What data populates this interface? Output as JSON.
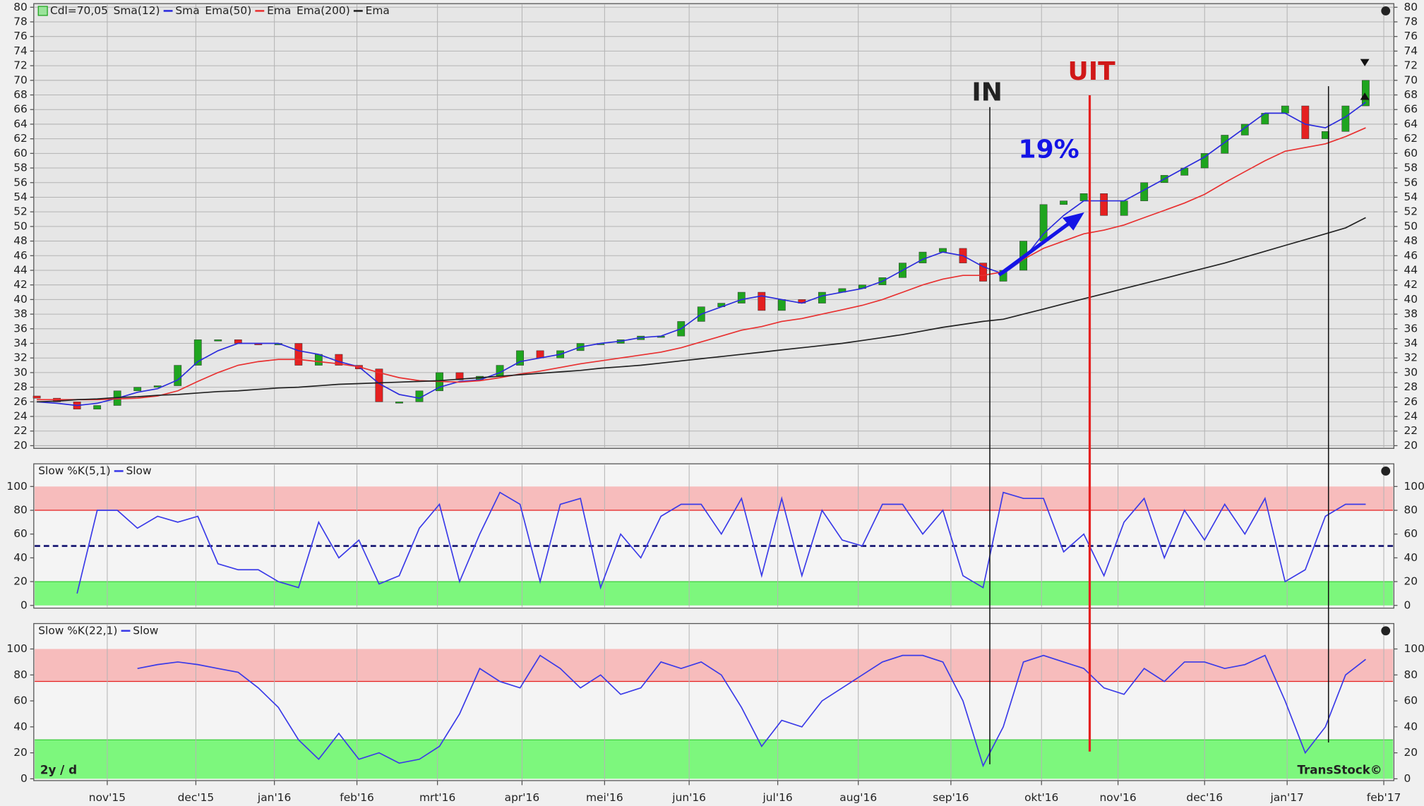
{
  "chart_data": [
    {
      "type": "candlestick",
      "x": [
        0,
        1,
        2,
        3,
        4,
        5,
        6,
        7,
        8,
        9,
        10,
        11,
        12,
        13,
        14,
        15,
        16,
        17,
        18,
        19,
        20,
        21,
        22,
        23,
        24,
        25,
        26,
        27,
        28,
        29,
        30,
        31,
        32,
        33,
        34,
        35,
        36,
        37,
        38,
        39,
        40,
        41,
        42,
        43,
        44,
        45,
        46,
        47,
        48,
        49,
        50,
        51,
        52,
        53,
        54,
        55,
        56,
        57,
        58,
        59,
        60,
        61,
        62,
        63,
        64,
        65,
        66
      ],
      "xlim": [
        -0.15,
        67.4
      ],
      "ylim": [
        20,
        80
      ],
      "yticks": [
        20,
        22,
        24,
        26,
        28,
        30,
        32,
        34,
        36,
        38,
        40,
        42,
        44,
        46,
        48,
        50,
        52,
        54,
        56,
        58,
        60,
        62,
        64,
        66,
        68,
        70,
        72,
        74,
        76,
        78,
        80
      ],
      "grid": true,
      "annotations": [
        "IN",
        "UIT",
        "19%"
      ],
      "series": [
        {
          "name": "Cdl=70,05",
          "type": "candlestick",
          "color": "#9be39b",
          "colors": {
            "up": "#1fa51f",
            "down": "#e52020"
          },
          "open": [
            26.8,
            26.5,
            26,
            25,
            25.5,
            27.5,
            28,
            28.2,
            31,
            34.5,
            34.5,
            34,
            33.8,
            34,
            31,
            32.5,
            31,
            30.5,
            26,
            26,
            27.5,
            30,
            29,
            29.5,
            31,
            33,
            32,
            33,
            34,
            34,
            34.5,
            35,
            35,
            37,
            39,
            39.5,
            41,
            38.5,
            40,
            39.5,
            41,
            41.5,
            42,
            43,
            45,
            46.5,
            47,
            45,
            42.5,
            44,
            48,
            53,
            53.5,
            54.5,
            51.5,
            53.5,
            56,
            57,
            58,
            60,
            62.5,
            64,
            65.5,
            66.5,
            62,
            63,
            66.5
          ],
          "close": [
            26.5,
            26,
            25,
            25.5,
            27.5,
            28,
            28.2,
            31,
            34.5,
            34.5,
            34,
            33.8,
            34,
            31,
            32.5,
            31,
            30.5,
            26,
            26,
            27.5,
            30,
            29,
            29.5,
            31,
            33,
            32,
            33,
            34,
            34,
            34.5,
            35,
            35,
            37,
            39,
            39.5,
            41,
            38.5,
            40,
            39.5,
            41,
            41.5,
            42,
            43,
            45,
            46.5,
            47,
            45,
            42.5,
            44,
            48,
            53,
            53.5,
            54.5,
            51.5,
            53.5,
            56,
            57,
            58,
            60,
            62.5,
            64,
            65.5,
            66.5,
            62,
            63,
            66.5,
            70
          ]
        },
        {
          "name": "Sma",
          "label": "Sma(12)",
          "color": "#2b2bdc",
          "values": [
            26,
            25.8,
            25.5,
            25.8,
            26.5,
            27.3,
            27.8,
            29,
            31.5,
            33,
            34,
            34,
            34,
            33,
            32.5,
            31.5,
            30.8,
            28.5,
            27,
            26.5,
            28,
            28.8,
            29,
            30,
            31.5,
            32,
            32.5,
            33.5,
            34,
            34.3,
            34.8,
            35,
            36,
            38,
            39,
            40,
            40.5,
            40,
            39.5,
            40.5,
            41,
            41.5,
            42.5,
            44,
            45.5,
            46.5,
            46,
            44.5,
            43.5,
            45.5,
            49,
            51.5,
            53.5,
            53.5,
            53.5,
            55,
            56.5,
            58,
            59.5,
            61.5,
            63.5,
            65.5,
            65.5,
            64,
            63.5,
            65,
            67
          ]
        },
        {
          "name": "Ema",
          "label": "Ema(50)",
          "color": "#e83030",
          "values": [
            26.3,
            26.3,
            26.3,
            26.3,
            26.4,
            26.5,
            26.8,
            27.5,
            28.8,
            30,
            31,
            31.5,
            31.8,
            31.8,
            31.5,
            31.2,
            30.8,
            30,
            29.3,
            28.9,
            28.8,
            28.7,
            28.9,
            29.3,
            29.8,
            30.2,
            30.7,
            31.2,
            31.6,
            32,
            32.4,
            32.8,
            33.4,
            34.2,
            35,
            35.8,
            36.3,
            37,
            37.4,
            38,
            38.6,
            39.2,
            40,
            41,
            42,
            42.8,
            43.3,
            43.3,
            43.8,
            45.5,
            47,
            48,
            49,
            49.5,
            50.2,
            51.2,
            52.2,
            53.2,
            54.4,
            56,
            57.5,
            59,
            60.3,
            60.8,
            61.3,
            62.3,
            63.5
          ]
        },
        {
          "name": "Ema",
          "label": "Ema(200)",
          "color": "#222222",
          "values": [
            26,
            26.1,
            26.3,
            26.4,
            26.6,
            26.7,
            26.9,
            27,
            27.2,
            27.4,
            27.5,
            27.7,
            27.9,
            28,
            28.2,
            28.4,
            28.5,
            28.6,
            28.7,
            28.8,
            28.9,
            29.1,
            29.3,
            29.5,
            29.7,
            29.9,
            30.1,
            30.3,
            30.6,
            30.8,
            31,
            31.3,
            31.6,
            31.9,
            32.2,
            32.5,
            32.8,
            33.1,
            33.4,
            33.7,
            34,
            34.4,
            34.8,
            35.2,
            35.7,
            36.2,
            36.6,
            37,
            37.3,
            38,
            38.7,
            39.4,
            40.1,
            40.8,
            41.5,
            42.2,
            42.9,
            43.6,
            44.3,
            45,
            45.8,
            46.6,
            47.4,
            48.2,
            49,
            49.8,
            51.2
          ]
        }
      ]
    },
    {
      "type": "line",
      "x": [
        0,
        1,
        2,
        3,
        4,
        5,
        6,
        7,
        8,
        9,
        10,
        11,
        12,
        13,
        14,
        15,
        16,
        17,
        18,
        19,
        20,
        21,
        22,
        23,
        24,
        25,
        26,
        27,
        28,
        29,
        30,
        31,
        32,
        33,
        34,
        35,
        36,
        37,
        38,
        39,
        40,
        41,
        42,
        43,
        44,
        45,
        46,
        47,
        48,
        49,
        50,
        51,
        52,
        53,
        54,
        55,
        56,
        57,
        58,
        59,
        60,
        61,
        62,
        63,
        64,
        65,
        66
      ],
      "xlim": [
        -0.15,
        67.4
      ],
      "ylim": [
        0,
        100
      ],
      "yticks": [
        0,
        20,
        40,
        60,
        80,
        100
      ],
      "bands": [
        {
          "from": 80,
          "to": 100,
          "color": "#f7bcbc",
          "edge": "#e52020"
        },
        {
          "from": 0,
          "to": 20,
          "color": "#7df77d",
          "edge": "#3ccc3c"
        }
      ],
      "ref_line": 50,
      "series": [
        {
          "name": "Slow",
          "label": "Slow %K(5,1)",
          "color": "#3a3ae8",
          "values": [
            null,
            null,
            10,
            80,
            80,
            65,
            75,
            70,
            75,
            35,
            30,
            30,
            20,
            15,
            70,
            40,
            55,
            18,
            25,
            65,
            85,
            20,
            60,
            95,
            85,
            20,
            85,
            90,
            15,
            60,
            40,
            75,
            85,
            85,
            60,
            90,
            25,
            90,
            25,
            80,
            55,
            50,
            85,
            85,
            60,
            80,
            25,
            15,
            95,
            90,
            90,
            45,
            60,
            25,
            70,
            90,
            40,
            80,
            55,
            85,
            60,
            90,
            20,
            30,
            75,
            85,
            85
          ]
        }
      ]
    },
    {
      "type": "line",
      "x": [
        0,
        1,
        2,
        3,
        4,
        5,
        6,
        7,
        8,
        9,
        10,
        11,
        12,
        13,
        14,
        15,
        16,
        17,
        18,
        19,
        20,
        21,
        22,
        23,
        24,
        25,
        26,
        27,
        28,
        29,
        30,
        31,
        32,
        33,
        34,
        35,
        36,
        37,
        38,
        39,
        40,
        41,
        42,
        43,
        44,
        45,
        46,
        47,
        48,
        49,
        50,
        51,
        52,
        53,
        54,
        55,
        56,
        57,
        58,
        59,
        60,
        61,
        62,
        63,
        64,
        65,
        66
      ],
      "xlim": [
        -0.15,
        67.4
      ],
      "ylim": [
        0,
        100
      ],
      "yticks": [
        0,
        20,
        40,
        60,
        80,
        100
      ],
      "xticks": [
        {
          "value": 3.5,
          "label": "nov'15"
        },
        {
          "value": 7.9,
          "label": "dec'15"
        },
        {
          "value": 11.8,
          "label": "jan'16"
        },
        {
          "value": 15.9,
          "label": "feb'16"
        },
        {
          "value": 19.9,
          "label": "mrt'16"
        },
        {
          "value": 24.1,
          "label": "apr'16"
        },
        {
          "value": 28.2,
          "label": "mei'16"
        },
        {
          "value": 32.4,
          "label": "jun'16"
        },
        {
          "value": 36.8,
          "label": "jul'16"
        },
        {
          "value": 40.8,
          "label": "aug'16"
        },
        {
          "value": 45.4,
          "label": "sep'16"
        },
        {
          "value": 49.9,
          "label": "okt'16"
        },
        {
          "value": 53.7,
          "label": "nov'16"
        },
        {
          "value": 58.0,
          "label": "dec'16"
        },
        {
          "value": 62.1,
          "label": "jan'17"
        },
        {
          "value": 66.9,
          "label": "feb'17"
        }
      ],
      "bands": [
        {
          "from": 75,
          "to": 100,
          "color": "#f7bcbc",
          "edge": "#e52020"
        },
        {
          "from": 0,
          "to": 30,
          "color": "#7df77d",
          "edge": "#3ccc3c"
        }
      ],
      "annotations": [
        "2y / d",
        "TransStock©"
      ],
      "series": [
        {
          "name": "Slow",
          "label": "Slow %K(22,1)",
          "color": "#3a3ae8",
          "values": [
            null,
            null,
            null,
            null,
            null,
            85,
            88,
            90,
            88,
            85,
            82,
            70,
            55,
            30,
            15,
            35,
            15,
            20,
            12,
            15,
            25,
            50,
            85,
            75,
            70,
            95,
            85,
            70,
            80,
            65,
            70,
            90,
            85,
            90,
            80,
            55,
            25,
            45,
            40,
            60,
            70,
            80,
            90,
            95,
            95,
            90,
            60,
            10,
            40,
            90,
            95,
            90,
            85,
            70,
            65,
            85,
            75,
            90,
            90,
            85,
            88,
            95,
            60,
            20,
            40,
            80,
            92
          ]
        }
      ]
    }
  ]
}
